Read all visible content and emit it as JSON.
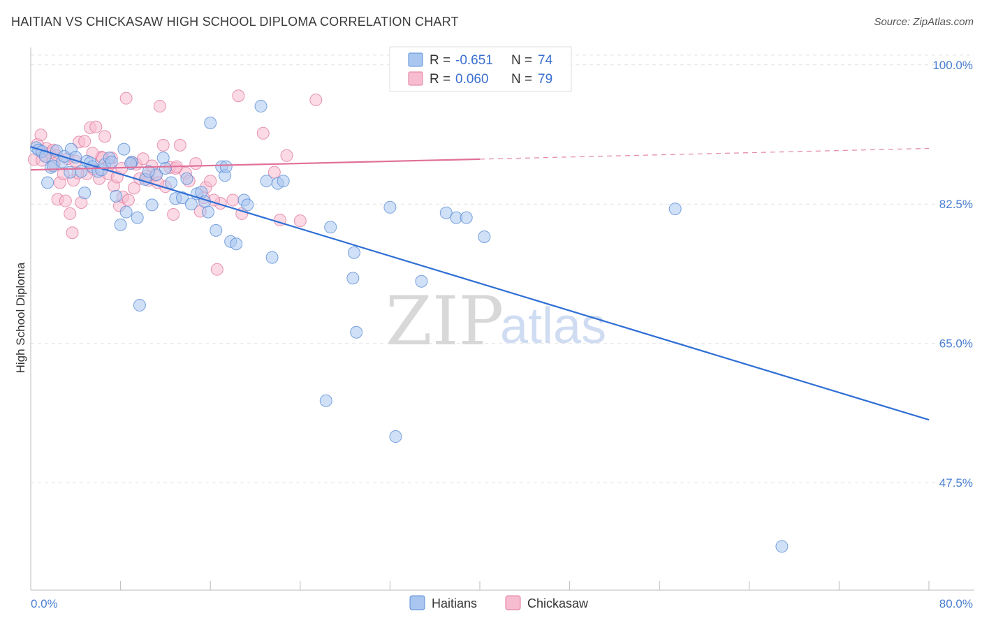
{
  "header": {
    "title": "HAITIAN VS CHICKASAW HIGH SCHOOL DIPLOMA CORRELATION CHART",
    "source": "Source: ZipAtlas.com"
  },
  "watermark": {
    "zip": "ZIP",
    "atlas": "atlas"
  },
  "legend": {
    "rows": [
      {
        "r_label": "R =",
        "r_value": "-0.651",
        "n_label": "N =",
        "n_value": "74",
        "color": "#a9c6f0",
        "stroke": "#5b8ed6"
      },
      {
        "r_label": "R =",
        "r_value": "0.060",
        "n_label": "N =",
        "n_value": "79",
        "color": "#f7bcd0",
        "stroke": "#e07aa0"
      }
    ]
  },
  "chart_data": {
    "type": "scatter",
    "title": "HAITIAN VS CHICKASAW HIGH SCHOOL DIPLOMA CORRELATION CHART",
    "xlabel": "",
    "ylabel": "High School Diploma",
    "xlim": [
      0,
      80
    ],
    "ylim": [
      34,
      102
    ],
    "x_tick_labels": [
      "0.0%",
      "80.0%"
    ],
    "y_ticks": [
      {
        "value": 47.5,
        "label": "47.5%"
      },
      {
        "value": 65.0,
        "label": "65.0%"
      },
      {
        "value": 82.5,
        "label": "82.5%"
      },
      {
        "value": 100.0,
        "label": "100.0%"
      }
    ],
    "grid": true,
    "series": [
      {
        "name": "Haitians",
        "color": "#a9c6f0",
        "stroke": "#5b8ed6",
        "trend": {
          "x0": 0,
          "y0": 89.7,
          "x1": 80,
          "y1": 55.4,
          "color": "#2f6fd4",
          "dashed_from": null
        },
        "points": [
          [
            0.5,
            89.6
          ],
          [
            0.7,
            89.3
          ],
          [
            1.0,
            89.1
          ],
          [
            1.3,
            88.5
          ],
          [
            1.5,
            85.2
          ],
          [
            1.8,
            87.1
          ],
          [
            2.0,
            87.3
          ],
          [
            2.3,
            89.2
          ],
          [
            2.8,
            87.8
          ],
          [
            3.0,
            88.5
          ],
          [
            3.5,
            86.5
          ],
          [
            3.6,
            89.4
          ],
          [
            4.0,
            88.4
          ],
          [
            4.5,
            86.6
          ],
          [
            4.8,
            83.9
          ],
          [
            5.0,
            87.9
          ],
          [
            5.3,
            87.7
          ],
          [
            5.5,
            87.2
          ],
          [
            6.0,
            86.6
          ],
          [
            6.3,
            86.8
          ],
          [
            6.6,
            87.5
          ],
          [
            7.0,
            88.3
          ],
          [
            7.2,
            87.8
          ],
          [
            7.6,
            83.5
          ],
          [
            8.0,
            79.9
          ],
          [
            8.3,
            89.4
          ],
          [
            8.5,
            81.5
          ],
          [
            9.0,
            87.8
          ],
          [
            9.5,
            80.8
          ],
          [
            9.7,
            69.8
          ],
          [
            10.2,
            85.6
          ],
          [
            10.8,
            82.4
          ],
          [
            11.2,
            86.2
          ],
          [
            11.8,
            88.3
          ],
          [
            12.0,
            87.0
          ],
          [
            12.5,
            85.2
          ],
          [
            12.9,
            83.2
          ],
          [
            13.5,
            83.3
          ],
          [
            13.9,
            85.7
          ],
          [
            14.3,
            82.5
          ],
          [
            14.8,
            83.8
          ],
          [
            15.2,
            84.0
          ],
          [
            15.5,
            82.8
          ],
          [
            15.8,
            81.5
          ],
          [
            16.0,
            92.7
          ],
          [
            16.5,
            79.2
          ],
          [
            17.0,
            87.2
          ],
          [
            17.3,
            86.1
          ],
          [
            17.8,
            77.8
          ],
          [
            18.3,
            77.5
          ],
          [
            19.0,
            83.0
          ],
          [
            19.3,
            82.4
          ],
          [
            20.5,
            94.8
          ],
          [
            21.0,
            85.4
          ],
          [
            21.5,
            75.8
          ],
          [
            22.0,
            85.1
          ],
          [
            22.5,
            85.4
          ],
          [
            26.3,
            57.8
          ],
          [
            26.7,
            79.6
          ],
          [
            28.7,
            73.2
          ],
          [
            28.8,
            76.4
          ],
          [
            29.0,
            66.4
          ],
          [
            32.0,
            82.1
          ],
          [
            32.5,
            53.3
          ],
          [
            34.8,
            72.8
          ],
          [
            37.0,
            81.4
          ],
          [
            37.9,
            80.8
          ],
          [
            38.8,
            80.8
          ],
          [
            40.4,
            78.4
          ],
          [
            66.9,
            39.5
          ],
          [
            57.4,
            81.9
          ],
          [
            17.4,
            87.2
          ],
          [
            10.5,
            86.6
          ],
          [
            8.9,
            87.6
          ]
        ]
      },
      {
        "name": "Chickasaw",
        "color": "#f7bcd0",
        "stroke": "#e07aa0",
        "trend": {
          "x0": 0,
          "y0": 86.8,
          "x1": 80,
          "y1": 89.5,
          "color": "#e0709a",
          "dashed_from": 40
        },
        "points": [
          [
            0.3,
            88.1
          ],
          [
            0.6,
            90.0
          ],
          [
            0.9,
            91.2
          ],
          [
            1.2,
            88.7
          ],
          [
            1.4,
            89.5
          ],
          [
            1.7,
            88.9
          ],
          [
            2.0,
            89.3
          ],
          [
            2.3,
            88.6
          ],
          [
            2.4,
            83.1
          ],
          [
            2.6,
            85.2
          ],
          [
            2.9,
            86.3
          ],
          [
            3.1,
            82.9
          ],
          [
            3.3,
            88.2
          ],
          [
            3.5,
            81.3
          ],
          [
            3.8,
            85.5
          ],
          [
            4.0,
            87.9
          ],
          [
            4.3,
            90.3
          ],
          [
            4.5,
            82.7
          ],
          [
            4.8,
            90.4
          ],
          [
            5.0,
            86.3
          ],
          [
            5.3,
            92.1
          ],
          [
            5.6,
            86.9
          ],
          [
            5.8,
            92.2
          ],
          [
            6.1,
            85.7
          ],
          [
            6.3,
            88.4
          ],
          [
            6.6,
            91.0
          ],
          [
            6.9,
            86.3
          ],
          [
            7.2,
            88.3
          ],
          [
            7.4,
            84.8
          ],
          [
            7.7,
            85.9
          ],
          [
            7.9,
            82.3
          ],
          [
            8.2,
            83.4
          ],
          [
            8.5,
            95.8
          ],
          [
            8.7,
            83.0
          ],
          [
            9.0,
            87.7
          ],
          [
            9.4,
            87.5
          ],
          [
            9.7,
            85.7
          ],
          [
            10.0,
            88.2
          ],
          [
            10.5,
            85.5
          ],
          [
            10.8,
            87.3
          ],
          [
            11.1,
            86.1
          ],
          [
            11.5,
            94.8
          ],
          [
            11.8,
            89.9
          ],
          [
            12.0,
            84.7
          ],
          [
            12.4,
            87.1
          ],
          [
            12.9,
            87.0
          ],
          [
            13.3,
            89.9
          ],
          [
            13.8,
            86.4
          ],
          [
            14.1,
            85.4
          ],
          [
            14.7,
            87.6
          ],
          [
            15.1,
            81.6
          ],
          [
            15.6,
            84.6
          ],
          [
            16.0,
            85.4
          ],
          [
            16.6,
            74.3
          ],
          [
            16.9,
            82.6
          ],
          [
            18.5,
            96.1
          ],
          [
            18.8,
            81.3
          ],
          [
            20.7,
            91.4
          ],
          [
            21.7,
            86.5
          ],
          [
            22.2,
            80.5
          ],
          [
            22.8,
            88.6
          ],
          [
            24.0,
            80.4
          ],
          [
            25.4,
            95.6
          ],
          [
            3.7,
            78.9
          ],
          [
            6.4,
            88.3
          ],
          [
            8.1,
            87.0
          ],
          [
            9.2,
            84.5
          ],
          [
            11.3,
            85.2
          ],
          [
            12.7,
            81.2
          ],
          [
            16.3,
            83.0
          ],
          [
            2.1,
            87.6
          ],
          [
            5.5,
            88.9
          ],
          [
            7.0,
            87.4
          ],
          [
            10.3,
            86.0
          ],
          [
            13.0,
            87.2
          ],
          [
            15.4,
            83.3
          ],
          [
            18.0,
            83.0
          ],
          [
            1.0,
            88.0
          ],
          [
            4.2,
            86.4
          ]
        ]
      }
    ],
    "legend_position": "top-center",
    "bottom_legend": [
      "Haitians",
      "Chickasaw"
    ]
  }
}
